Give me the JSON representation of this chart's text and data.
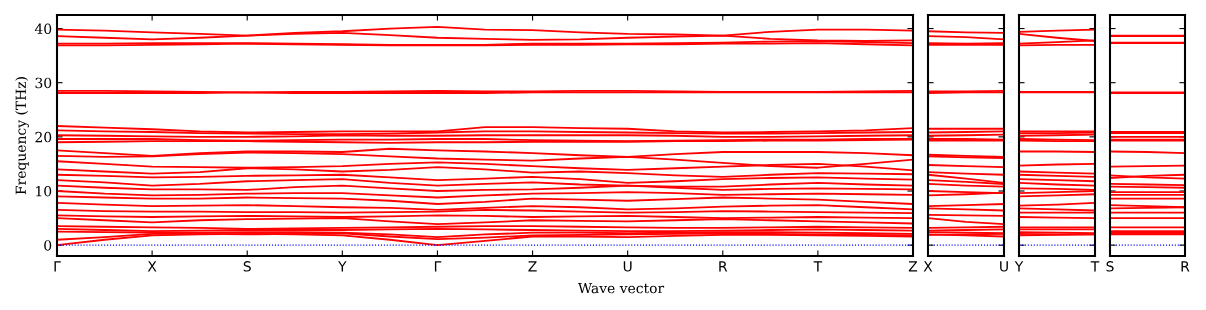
{
  "chart_data": [
    {
      "type": "line",
      "ylabel": "Frequency (THz)",
      "xlabel": "Wave vector",
      "marker": "none",
      "line_style": "solid",
      "categories": [
        "Γ",
        null,
        "X",
        null,
        "S",
        null,
        "Y",
        null,
        "Γ",
        null,
        "Z",
        null,
        "U",
        null,
        "R",
        null,
        "T",
        null,
        "Z"
      ],
      "ylim": [
        -2,
        42.5
      ],
      "yticks": [
        0,
        10,
        20,
        30,
        40
      ],
      "ref_lines": [
        {
          "axis": "y",
          "value": 0,
          "color": "#0000ff",
          "line_style": "dotted"
        }
      ],
      "series": [
        {
          "color": "#ff0000",
          "values": [
            39.8,
            39.6,
            39.3,
            39.0,
            38.7,
            39.2,
            39.5,
            40.0,
            40.3,
            39.8,
            39.7,
            39.3,
            39.0,
            38.9,
            38.7,
            39.4,
            39.8,
            39.8,
            39.6
          ]
        },
        {
          "color": "#ff0000",
          "values": [
            38.6,
            38.3,
            38.0,
            38.3,
            38.7,
            39.0,
            39.2,
            38.8,
            38.3,
            38.1,
            37.9,
            38.0,
            38.3,
            38.5,
            38.7,
            38.1,
            37.8,
            37.7,
            37.8
          ]
        },
        {
          "color": "#ff0000",
          "values": [
            37.2,
            37.2,
            37.3,
            37.3,
            37.3,
            37.2,
            37.1,
            37.0,
            37.0,
            37.0,
            37.2,
            37.2,
            37.2,
            37.3,
            37.4,
            37.6,
            37.7,
            37.5,
            37.3
          ]
        },
        {
          "color": "#ff0000",
          "values": [
            36.9,
            36.9,
            37.0,
            37.1,
            37.2,
            37.1,
            37.0,
            36.9,
            36.9,
            36.9,
            37.0,
            37.0,
            37.1,
            37.1,
            37.2,
            37.2,
            37.3,
            37.1,
            36.9
          ]
        },
        {
          "color": "#ff0000",
          "values": [
            28.5,
            28.5,
            28.4,
            28.3,
            28.2,
            28.3,
            28.3,
            28.4,
            28.5,
            28.4,
            28.4,
            28.5,
            28.5,
            28.4,
            28.3,
            28.3,
            28.3,
            28.4,
            28.5
          ]
        },
        {
          "color": "#ff0000",
          "values": [
            28.1,
            28.1,
            28.1,
            28.1,
            28.2,
            28.1,
            28.1,
            28.1,
            28.1,
            28.1,
            28.2,
            28.2,
            28.2,
            28.2,
            28.2,
            28.2,
            28.2,
            28.2,
            28.2
          ]
        },
        {
          "color": "#ff0000",
          "values": [
            22.0,
            21.7,
            21.4,
            21.0,
            20.8,
            20.9,
            21.0,
            21.0,
            21.0,
            21.8,
            21.8,
            21.6,
            21.5,
            21.0,
            20.8,
            20.9,
            21.0,
            21.2,
            21.6
          ]
        },
        {
          "color": "#ff0000",
          "values": [
            21.2,
            21.0,
            20.9,
            20.7,
            20.6,
            20.5,
            20.5,
            20.6,
            20.8,
            21.0,
            21.0,
            20.9,
            20.8,
            20.7,
            20.6,
            20.6,
            20.7,
            20.8,
            20.9
          ]
        },
        {
          "color": "#ff0000",
          "values": [
            20.3,
            20.2,
            20.1,
            20.0,
            20.0,
            20.1,
            20.3,
            20.2,
            20.2,
            20.3,
            20.3,
            20.3,
            20.3,
            20.2,
            20.0,
            20.0,
            20.1,
            20.2,
            20.3
          ]
        },
        {
          "color": "#ff0000",
          "values": [
            19.6,
            19.6,
            19.6,
            19.4,
            19.3,
            19.4,
            19.5,
            19.5,
            19.6,
            19.6,
            19.4,
            19.3,
            19.2,
            19.3,
            19.4,
            19.5,
            19.5,
            19.6,
            19.6
          ]
        },
        {
          "color": "#ff0000",
          "values": [
            19.0,
            19.1,
            19.2,
            19.2,
            19.2,
            19.1,
            19.0,
            18.9,
            19.0,
            19.0,
            19.1,
            19.1,
            19.1,
            19.2,
            19.2,
            19.3,
            19.3,
            19.4,
            19.5
          ]
        },
        {
          "color": "#ff0000",
          "values": [
            17.5,
            17.0,
            16.5,
            17.0,
            17.3,
            17.3,
            17.2,
            17.8,
            17.5,
            17.3,
            17.0,
            16.6,
            16.3,
            16.8,
            17.2,
            17.2,
            17.2,
            17.0,
            16.6
          ]
        },
        {
          "color": "#ff0000",
          "values": [
            16.5,
            16.3,
            16.4,
            16.8,
            17.1,
            17.0,
            16.8,
            16.4,
            16.0,
            15.8,
            15.6,
            16.0,
            16.3,
            15.8,
            15.2,
            14.6,
            14.3,
            15.0,
            15.8
          ]
        },
        {
          "color": "#ff0000",
          "values": [
            15.5,
            15.0,
            14.5,
            14.4,
            14.3,
            14.4,
            14.6,
            15.0,
            15.3,
            15.0,
            14.6,
            14.2,
            13.9,
            14.2,
            14.5,
            14.8,
            15.0,
            14.5,
            13.8
          ]
        },
        {
          "color": "#ff0000",
          "values": [
            14.0,
            13.6,
            13.2,
            13.5,
            14.2,
            14.0,
            13.6,
            13.9,
            14.4,
            14.0,
            13.4,
            13.6,
            13.3,
            12.9,
            12.6,
            13.0,
            13.3,
            13.2,
            13.1
          ]
        },
        {
          "color": "#ff0000",
          "values": [
            13.0,
            12.8,
            12.5,
            12.6,
            12.8,
            12.9,
            13.0,
            12.5,
            12.0,
            12.3,
            12.6,
            12.2,
            11.5,
            11.8,
            12.2,
            12.4,
            12.5,
            12.3,
            12.1
          ]
        },
        {
          "color": "#ff0000",
          "values": [
            12.0,
            11.6,
            11.0,
            11.3,
            11.8,
            12.0,
            12.2,
            11.5,
            11.0,
            11.3,
            11.6,
            11.2,
            11.0,
            10.8,
            10.8,
            11.2,
            11.5,
            11.2,
            11.0
          ]
        },
        {
          "color": "#ff0000",
          "values": [
            11.0,
            10.6,
            10.3,
            10.3,
            10.2,
            10.7,
            11.0,
            10.5,
            10.0,
            10.2,
            10.3,
            10.6,
            11.0,
            10.6,
            10.2,
            10.4,
            10.5,
            10.4,
            10.3
          ]
        },
        {
          "color": "#ff0000",
          "values": [
            10.0,
            9.5,
            9.2,
            9.3,
            9.5,
            9.6,
            9.6,
            9.2,
            8.8,
            9.2,
            9.5,
            9.6,
            9.8,
            9.6,
            9.3,
            9.4,
            9.5,
            9.4,
            9.3
          ]
        },
        {
          "color": "#ff0000",
          "values": [
            9.0,
            8.8,
            8.6,
            8.6,
            8.8,
            8.7,
            8.6,
            8.2,
            7.6,
            8.0,
            8.6,
            8.4,
            8.2,
            8.5,
            8.8,
            8.6,
            8.4,
            8.0,
            7.6
          ]
        },
        {
          "color": "#ff0000",
          "values": [
            7.8,
            7.5,
            7.2,
            7.3,
            7.4,
            7.2,
            7.0,
            6.9,
            6.5,
            6.9,
            7.2,
            7.0,
            6.6,
            6.8,
            7.1,
            7.3,
            7.4,
            7.0,
            6.6
          ]
        },
        {
          "color": "#ff0000",
          "values": [
            6.5,
            6.3,
            6.2,
            6.2,
            6.1,
            6.1,
            6.0,
            6.1,
            6.2,
            6.5,
            6.4,
            6.2,
            6.0,
            6.1,
            6.3,
            6.2,
            6.1,
            6.0,
            5.9
          ]
        },
        {
          "color": "#ff0000",
          "values": [
            5.5,
            5.3,
            5.2,
            5.3,
            5.4,
            5.3,
            5.2,
            5.3,
            5.5,
            5.4,
            5.2,
            5.3,
            5.4,
            5.2,
            5.0,
            5.1,
            5.2,
            5.1,
            5.0
          ]
        },
        {
          "color": "#ff0000",
          "values": [
            5.0,
            4.6,
            4.2,
            4.6,
            4.8,
            4.9,
            5.0,
            4.4,
            3.9,
            4.2,
            4.6,
            4.5,
            4.4,
            4.6,
            4.8,
            4.6,
            4.4,
            4.2,
            4.0
          ]
        },
        {
          "color": "#ff0000",
          "values": [
            3.5,
            3.4,
            3.3,
            3.2,
            3.0,
            3.1,
            3.2,
            3.3,
            3.4,
            3.5,
            3.5,
            3.4,
            3.3,
            3.2,
            3.2,
            3.3,
            3.4,
            3.3,
            3.2
          ]
        },
        {
          "color": "#ff0000",
          "values": [
            3.0,
            2.8,
            2.6,
            2.7,
            2.8,
            2.8,
            2.8,
            2.9,
            3.0,
            2.9,
            2.8,
            2.7,
            2.6,
            2.6,
            2.7,
            2.8,
            2.9,
            2.8,
            2.7
          ]
        },
        {
          "color": "#ff0000",
          "values": [
            2.5,
            2.4,
            2.3,
            2.3,
            2.4,
            2.4,
            2.3,
            2.0,
            1.5,
            2.0,
            2.3,
            2.3,
            2.2,
            2.3,
            2.4,
            2.4,
            2.3,
            2.2,
            2.1
          ]
        },
        {
          "color": "#ff0000",
          "values": [
            0,
            1.0,
            1.8,
            2.0,
            2.1,
            2.0,
            1.8,
            1.0,
            0,
            0.8,
            1.6,
            1.6,
            1.5,
            1.7,
            1.9,
            1.9,
            1.8,
            1.7,
            1.6
          ]
        },
        {
          "color": "#ff0000",
          "values": [
            1.0,
            1.5,
            2.1,
            2.1,
            2.0,
            2.1,
            2.2,
            1.6,
            1.1,
            1.4,
            1.8,
            1.9,
            2.0,
            2.1,
            2.2,
            2.1,
            2.0,
            1.9,
            1.8
          ]
        }
      ]
    },
    {
      "type": "line",
      "marker": "none",
      "line_style": "solid",
      "tick_labels": "x",
      "categories": [
        "X",
        null,
        "U"
      ],
      "ylim": [
        -2,
        42.5
      ],
      "yticks": [
        0,
        10,
        20,
        30,
        40
      ],
      "ref_lines": [
        {
          "axis": "y",
          "value": 0,
          "color": "#0000ff",
          "line_style": "dotted"
        }
      ],
      "series": [
        {
          "color": "#ff0000",
          "values": [
            39.5,
            39.3,
            39.2
          ]
        },
        {
          "color": "#ff0000",
          "values": [
            38.6,
            38.4,
            38.0
          ]
        },
        {
          "color": "#ff0000",
          "values": [
            37.3,
            37.2,
            37.3
          ]
        },
        {
          "color": "#ff0000",
          "values": [
            37.0,
            37.0,
            37.0
          ]
        },
        {
          "color": "#ff0000",
          "values": [
            28.4,
            28.4,
            28.5
          ]
        },
        {
          "color": "#ff0000",
          "values": [
            28.1,
            28.2,
            28.2
          ]
        },
        {
          "color": "#ff0000",
          "values": [
            21.5,
            21.5,
            21.5
          ]
        },
        {
          "color": "#ff0000",
          "values": [
            20.8,
            20.9,
            21.0
          ]
        },
        {
          "color": "#ff0000",
          "values": [
            20.2,
            20.3,
            20.4
          ]
        },
        {
          "color": "#ff0000",
          "values": [
            19.6,
            19.6,
            19.5
          ]
        },
        {
          "color": "#ff0000",
          "values": [
            19.3,
            19.3,
            19.3
          ]
        },
        {
          "color": "#ff0000",
          "values": [
            16.7,
            16.5,
            16.3
          ]
        },
        {
          "color": "#ff0000",
          "values": [
            16.4,
            16.2,
            16.1
          ]
        },
        {
          "color": "#ff0000",
          "values": [
            14.8,
            14.6,
            14.4
          ]
        },
        {
          "color": "#ff0000",
          "values": [
            13.5,
            13.2,
            13.0
          ]
        },
        {
          "color": "#ff0000",
          "values": [
            13.0,
            12.3,
            11.5
          ]
        },
        {
          "color": "#ff0000",
          "values": [
            12.0,
            11.7,
            11.3
          ]
        },
        {
          "color": "#ff0000",
          "values": [
            11.3,
            11.0,
            10.8
          ]
        },
        {
          "color": "#ff0000",
          "values": [
            10.0,
            9.8,
            9.6
          ]
        },
        {
          "color": "#ff0000",
          "values": [
            9.2,
            9.4,
            9.7
          ]
        },
        {
          "color": "#ff0000",
          "values": [
            7.2,
            7.4,
            7.6
          ]
        },
        {
          "color": "#ff0000",
          "values": [
            6.8,
            6.6,
            6.4
          ]
        },
        {
          "color": "#ff0000",
          "values": [
            5.6,
            5.5,
            5.4
          ]
        },
        {
          "color": "#ff0000",
          "values": [
            5.0,
            4.3,
            3.9
          ]
        },
        {
          "color": "#ff0000",
          "values": [
            3.2,
            3.3,
            3.4
          ]
        },
        {
          "color": "#ff0000",
          "values": [
            2.7,
            2.8,
            2.9
          ]
        },
        {
          "color": "#ff0000",
          "values": [
            2.4,
            2.3,
            2.2
          ]
        },
        {
          "color": "#ff0000",
          "values": [
            2.0,
            1.8,
            1.6
          ]
        },
        {
          "color": "#ff0000",
          "values": [
            1.9,
            2.0,
            2.1
          ]
        }
      ]
    },
    {
      "type": "line",
      "marker": "none",
      "line_style": "solid",
      "tick_labels": "x",
      "categories": [
        "Y",
        null,
        "T"
      ],
      "ylim": [
        -2,
        42.5
      ],
      "yticks": [
        0,
        10,
        20,
        30,
        40
      ],
      "ref_lines": [
        {
          "axis": "y",
          "value": 0,
          "color": "#0000ff",
          "line_style": "dotted"
        }
      ],
      "series": [
        {
          "color": "#ff0000",
          "values": [
            39.4,
            39.6,
            39.8
          ]
        },
        {
          "color": "#ff0000",
          "values": [
            39.0,
            38.3,
            37.7
          ]
        },
        {
          "color": "#ff0000",
          "values": [
            37.2,
            37.5,
            37.8
          ]
        },
        {
          "color": "#ff0000",
          "values": [
            36.9,
            37.0,
            37.0
          ]
        },
        {
          "color": "#ff0000",
          "values": [
            28.3,
            28.3,
            28.3
          ]
        },
        {
          "color": "#ff0000",
          "values": [
            28.2,
            28.2,
            28.2
          ]
        },
        {
          "color": "#ff0000",
          "values": [
            21.0,
            21.0,
            21.0
          ]
        },
        {
          "color": "#ff0000",
          "values": [
            20.7,
            20.7,
            20.8
          ]
        },
        {
          "color": "#ff0000",
          "values": [
            20.2,
            20.3,
            20.4
          ]
        },
        {
          "color": "#ff0000",
          "values": [
            19.6,
            19.5,
            19.4
          ]
        },
        {
          "color": "#ff0000",
          "values": [
            19.3,
            19.2,
            19.2
          ]
        },
        {
          "color": "#ff0000",
          "values": [
            17.3,
            17.3,
            17.2
          ]
        },
        {
          "color": "#ff0000",
          "values": [
            14.7,
            14.9,
            15.0
          ]
        },
        {
          "color": "#ff0000",
          "values": [
            13.6,
            13.4,
            13.2
          ]
        },
        {
          "color": "#ff0000",
          "values": [
            13.0,
            12.8,
            12.6
          ]
        },
        {
          "color": "#ff0000",
          "values": [
            12.2,
            12.0,
            11.8
          ]
        },
        {
          "color": "#ff0000",
          "values": [
            11.5,
            11.2,
            11.0
          ]
        },
        {
          "color": "#ff0000",
          "values": [
            10.5,
            10.4,
            10.2
          ]
        },
        {
          "color": "#ff0000",
          "values": [
            9.6,
            9.8,
            10.0
          ]
        },
        {
          "color": "#ff0000",
          "values": [
            9.0,
            9.2,
            9.4
          ]
        },
        {
          "color": "#ff0000",
          "values": [
            7.3,
            7.5,
            7.8
          ]
        },
        {
          "color": "#ff0000",
          "values": [
            6.8,
            6.6,
            6.4
          ]
        },
        {
          "color": "#ff0000",
          "values": [
            6.0,
            6.0,
            6.0
          ]
        },
        {
          "color": "#ff0000",
          "values": [
            5.2,
            5.1,
            5.0
          ]
        },
        {
          "color": "#ff0000",
          "values": [
            3.3,
            3.3,
            3.3
          ]
        },
        {
          "color": "#ff0000",
          "values": [
            2.9,
            2.9,
            2.9
          ]
        },
        {
          "color": "#ff0000",
          "values": [
            2.4,
            2.3,
            2.2
          ]
        },
        {
          "color": "#ff0000",
          "values": [
            2.1,
            2.0,
            2.0
          ]
        },
        {
          "color": "#ff0000",
          "values": [
            1.8,
            1.9,
            2.0
          ]
        }
      ]
    },
    {
      "type": "line",
      "marker": "none",
      "line_style": "solid",
      "tick_labels": "x",
      "categories": [
        "S",
        null,
        "R"
      ],
      "ylim": [
        -2,
        42.5
      ],
      "yticks": [
        0,
        10,
        20,
        30,
        40
      ],
      "ref_lines": [
        {
          "axis": "y",
          "value": 0,
          "color": "#0000ff",
          "line_style": "dotted"
        }
      ],
      "series": [
        {
          "color": "#ff0000",
          "values": [
            38.7,
            38.7,
            38.7
          ]
        },
        {
          "color": "#ff0000",
          "values": [
            38.6,
            38.6,
            38.6
          ]
        },
        {
          "color": "#ff0000",
          "values": [
            37.4,
            37.4,
            37.4
          ]
        },
        {
          "color": "#ff0000",
          "values": [
            37.3,
            37.3,
            37.3
          ]
        },
        {
          "color": "#ff0000",
          "values": [
            28.2,
            28.2,
            28.2
          ]
        },
        {
          "color": "#ff0000",
          "values": [
            28.1,
            28.1,
            28.1
          ]
        },
        {
          "color": "#ff0000",
          "values": [
            20.9,
            20.9,
            20.9
          ]
        },
        {
          "color": "#ff0000",
          "values": [
            20.7,
            20.7,
            20.7
          ]
        },
        {
          "color": "#ff0000",
          "values": [
            20.0,
            20.0,
            20.0
          ]
        },
        {
          "color": "#ff0000",
          "values": [
            19.5,
            19.5,
            19.5
          ]
        },
        {
          "color": "#ff0000",
          "values": [
            19.3,
            19.3,
            19.3
          ]
        },
        {
          "color": "#ff0000",
          "values": [
            17.3,
            17.2,
            17.0
          ]
        },
        {
          "color": "#ff0000",
          "values": [
            14.5,
            14.6,
            14.7
          ]
        },
        {
          "color": "#ff0000",
          "values": [
            12.9,
            12.5,
            12.3
          ]
        },
        {
          "color": "#ff0000",
          "values": [
            12.4,
            12.8,
            13.0
          ]
        },
        {
          "color": "#ff0000",
          "values": [
            11.3,
            11.2,
            11.1
          ]
        },
        {
          "color": "#ff0000",
          "values": [
            10.8,
            10.7,
            10.6
          ]
        },
        {
          "color": "#ff0000",
          "values": [
            9.8,
            9.8,
            9.8
          ]
        },
        {
          "color": "#ff0000",
          "values": [
            9.3,
            9.3,
            9.3
          ]
        },
        {
          "color": "#ff0000",
          "values": [
            8.6,
            8.6,
            8.6
          ]
        },
        {
          "color": "#ff0000",
          "values": [
            7.4,
            7.2,
            7.0
          ]
        },
        {
          "color": "#ff0000",
          "values": [
            6.8,
            6.9,
            7.0
          ]
        },
        {
          "color": "#ff0000",
          "values": [
            6.0,
            6.0,
            6.0
          ]
        },
        {
          "color": "#ff0000",
          "values": [
            5.0,
            5.0,
            5.0
          ]
        },
        {
          "color": "#ff0000",
          "values": [
            3.3,
            3.3,
            3.3
          ]
        },
        {
          "color": "#ff0000",
          "values": [
            2.6,
            2.6,
            2.6
          ]
        },
        {
          "color": "#ff0000",
          "values": [
            2.3,
            2.3,
            2.3
          ]
        },
        {
          "color": "#ff0000",
          "values": [
            2.1,
            2.1,
            2.1
          ]
        },
        {
          "color": "#ff0000",
          "values": [
            2.0,
            2.0,
            2.0
          ]
        }
      ]
    }
  ]
}
